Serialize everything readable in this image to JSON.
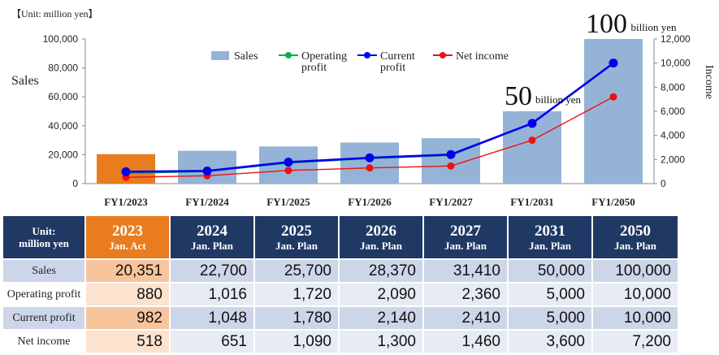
{
  "unit_note": "【Unit: million yen】",
  "chart_data": {
    "type": "bar",
    "categories": [
      "FY1/2023",
      "FY1/2024",
      "FY1/2025",
      "FY1/2026",
      "FY1/2027",
      "FY1/2031",
      "FY1/2050"
    ],
    "series": [
      {
        "name": "Sales",
        "kind": "bar",
        "axis": "left",
        "values": [
          20351,
          22700,
          25700,
          28370,
          31410,
          50000,
          100000
        ]
      },
      {
        "name": "Operating profit",
        "legend_label": [
          "Operating",
          "profit"
        ],
        "kind": "line",
        "axis": "right",
        "values": [
          880,
          1016,
          1720,
          2090,
          2360,
          5000,
          10000
        ]
      },
      {
        "name": "Current profit",
        "legend_label": [
          "Current",
          "profit"
        ],
        "kind": "line",
        "axis": "right",
        "values": [
          982,
          1048,
          1780,
          2140,
          2410,
          5000,
          10000
        ]
      },
      {
        "name": "Net income",
        "legend_label": [
          "Net income"
        ],
        "kind": "line",
        "axis": "right",
        "values": [
          518,
          651,
          1090,
          1300,
          1460,
          3600,
          7200
        ]
      }
    ],
    "ylabel": "Sales",
    "y2label": "Income",
    "ylim": [
      0,
      100000
    ],
    "y2lim": [
      0,
      12000
    ],
    "yticks": [
      "100,000",
      "80,000",
      "60,000",
      "40,000",
      "20,000",
      "0"
    ],
    "y2ticks": [
      "12,000",
      "10,000",
      "8,000",
      "6,000",
      "4,000",
      "2,000",
      "0"
    ],
    "legend_position": "top-center",
    "grid": false,
    "annotations": [
      {
        "category": "FY1/2031",
        "big": "50",
        "small": "billion yen"
      },
      {
        "category": "FY1/2050",
        "big": "100",
        "small": "billion yen"
      }
    ],
    "colors": {
      "sales_bar": "#95b3d7",
      "actual_bar": "#e97c1e",
      "operating_profit": "#00b050",
      "current_profit": "#0000ee",
      "net_income": "#ee1111"
    }
  },
  "table": {
    "corner": [
      "Unit:",
      "million yen"
    ],
    "columns": [
      {
        "year": "2023",
        "sub": "Jan. Act",
        "actual": true
      },
      {
        "year": "2024",
        "sub": "Jan. Plan"
      },
      {
        "year": "2025",
        "sub": "Jan. Plan"
      },
      {
        "year": "2026",
        "sub": "Jan. Plan"
      },
      {
        "year": "2027",
        "sub": "Jan. Plan"
      },
      {
        "year": "2031",
        "sub": "Jan. Plan"
      },
      {
        "year": "2050",
        "sub": "Jan. Plan"
      }
    ],
    "rows": [
      {
        "label": "Sales",
        "values": [
          "20,351",
          "22,700",
          "25,700",
          "28,370",
          "31,410",
          "50,000",
          "100,000"
        ]
      },
      {
        "label": "Operating profit",
        "values": [
          "880",
          "1,016",
          "1,720",
          "2,090",
          "2,360",
          "5,000",
          "10,000"
        ]
      },
      {
        "label": "Current profit",
        "values": [
          "982",
          "1,048",
          "1,780",
          "2,140",
          "2,410",
          "5,000",
          "10,000"
        ]
      },
      {
        "label": "Net income",
        "values": [
          "518",
          "651",
          "1,090",
          "1,300",
          "1,460",
          "3,600",
          "7,200"
        ]
      }
    ]
  }
}
